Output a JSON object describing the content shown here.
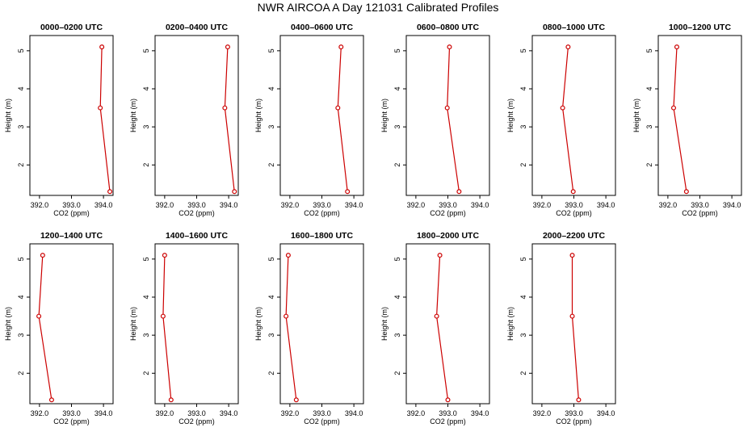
{
  "title": "NWR AIRCOA A  Day 121031  Calibrated Profiles",
  "chart_data": {
    "type": "line",
    "title": "NWR AIRCOA A  Day 121031  Calibrated Profiles",
    "xlabel": "CO2 (ppm)",
    "ylabel": "Height (m)",
    "xlim": [
      391.7,
      394.3
    ],
    "ylim": [
      1.2,
      5.4
    ],
    "xticks": [
      "392.0",
      "393.0",
      "394.0"
    ],
    "yticks": [
      "2",
      "3",
      "4",
      "5"
    ],
    "heights": [
      5.1,
      3.5,
      1.3
    ],
    "grid": false,
    "line_color": "#cc0000",
    "panels": [
      {
        "label": "0000–0200 UTC",
        "co2": [
          393.95,
          393.9,
          394.2
        ]
      },
      {
        "label": "0200–0400 UTC",
        "co2": [
          393.97,
          393.88,
          394.18
        ]
      },
      {
        "label": "0400–0600 UTC",
        "co2": [
          393.6,
          393.5,
          393.8
        ]
      },
      {
        "label": "0600–0800 UTC",
        "co2": [
          393.05,
          392.98,
          393.35
        ]
      },
      {
        "label": "0800–1000 UTC",
        "co2": [
          392.82,
          392.65,
          392.98
        ]
      },
      {
        "label": "1000–1200 UTC",
        "co2": [
          392.28,
          392.18,
          392.58
        ]
      },
      {
        "label": "1200–1400 UTC",
        "co2": [
          392.1,
          391.98,
          392.38
        ]
      },
      {
        "label": "1400–1600 UTC",
        "co2": [
          392.0,
          391.95,
          392.2
        ]
      },
      {
        "label": "1600–1800 UTC",
        "co2": [
          391.95,
          391.88,
          392.2
        ]
      },
      {
        "label": "1800–2000 UTC",
        "co2": [
          392.75,
          392.65,
          393.0
        ]
      },
      {
        "label": "2000–2200 UTC",
        "co2": [
          392.95,
          392.95,
          393.15
        ]
      }
    ]
  }
}
